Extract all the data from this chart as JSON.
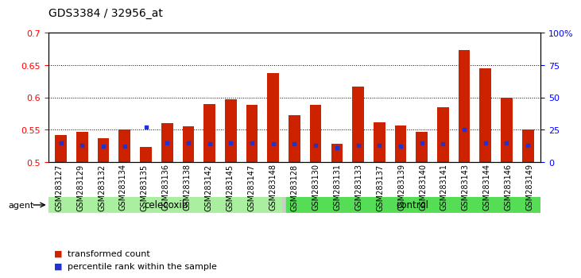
{
  "title": "GDS3384 / 32956_at",
  "samples": [
    "GSM283127",
    "GSM283129",
    "GSM283132",
    "GSM283134",
    "GSM283135",
    "GSM283136",
    "GSM283138",
    "GSM283142",
    "GSM283145",
    "GSM283147",
    "GSM283148",
    "GSM283128",
    "GSM283130",
    "GSM283131",
    "GSM283133",
    "GSM283137",
    "GSM283139",
    "GSM283140",
    "GSM283141",
    "GSM283143",
    "GSM283144",
    "GSM283146",
    "GSM283149"
  ],
  "red_values": [
    0.542,
    0.547,
    0.537,
    0.55,
    0.523,
    0.56,
    0.555,
    0.59,
    0.597,
    0.588,
    0.638,
    0.572,
    0.589,
    0.528,
    0.617,
    0.562,
    0.557,
    0.547,
    0.585,
    0.673,
    0.645,
    0.6,
    0.55
  ],
  "blue_pct": [
    15,
    13,
    12,
    12,
    27,
    15,
    15,
    14,
    15,
    15,
    14,
    14,
    13,
    11,
    13,
    13,
    12,
    15,
    14,
    25,
    15,
    15,
    13
  ],
  "celecoxib_count": 11,
  "ylim_left": [
    0.5,
    0.7
  ],
  "ylim_right": [
    0,
    100
  ],
  "yticks_left": [
    0.5,
    0.55,
    0.6,
    0.65,
    0.7
  ],
  "ytick_labels_left": [
    "0.5",
    "0.55",
    "0.6",
    "0.65",
    "0.7"
  ],
  "yticks_right": [
    0,
    25,
    50,
    75,
    100
  ],
  "ytick_labels_right": [
    "0",
    "25",
    "50",
    "75",
    "100%"
  ],
  "bar_color": "#cc2200",
  "dot_color": "#2233cc",
  "celecoxib_color": "#aaeea0",
  "control_color": "#55dd55",
  "agent_label": "agent",
  "celecoxib_label": "celecoxib",
  "control_label": "control",
  "legend_red": "transformed count",
  "legend_blue": "percentile rank within the sample",
  "bar_width": 0.55,
  "bg_color": "#ffffff",
  "tick_label_fontsize": 7,
  "title_fontsize": 10
}
